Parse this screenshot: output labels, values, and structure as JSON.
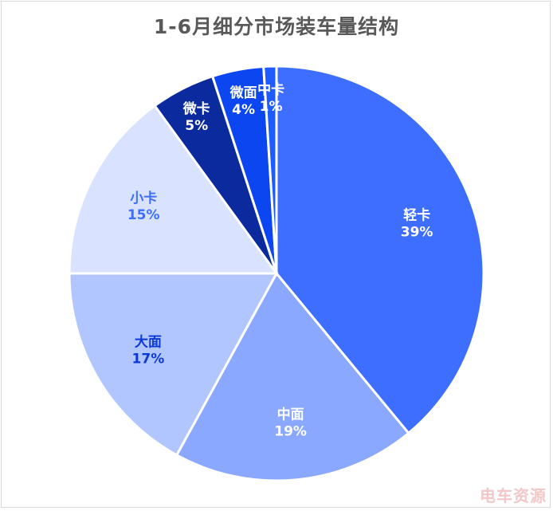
{
  "chart_data": {
    "type": "pie",
    "title": "1-6月细分市场装车量结构",
    "slices": [
      {
        "name": "轻卡",
        "label": "39%",
        "value": 39,
        "color": "#3d6eff",
        "label_color": "#ffffff"
      },
      {
        "name": "中面",
        "label": "19%",
        "value": 19,
        "color": "#8aa8ff",
        "label_color": "#ffffff"
      },
      {
        "name": "大面",
        "label": "17%",
        "value": 17,
        "color": "#b1c5ff",
        "label_color": "#0b38d6"
      },
      {
        "name": "小卡",
        "label": "15%",
        "value": 15,
        "color": "#d9e3ff",
        "label_color": "#3d6eff"
      },
      {
        "name": "微卡",
        "label": "5%",
        "value": 5,
        "color": "#0a2a9e",
        "label_color": "#ffffff"
      },
      {
        "name": "微面",
        "label": "4%",
        "value": 4,
        "color": "#0b46f0",
        "label_color": "#ffffff"
      },
      {
        "name": "中卡",
        "label": "1%",
        "value": 1,
        "color": "#1f5cff",
        "label_color": "#ffffff"
      }
    ]
  },
  "watermark": "电车资源"
}
